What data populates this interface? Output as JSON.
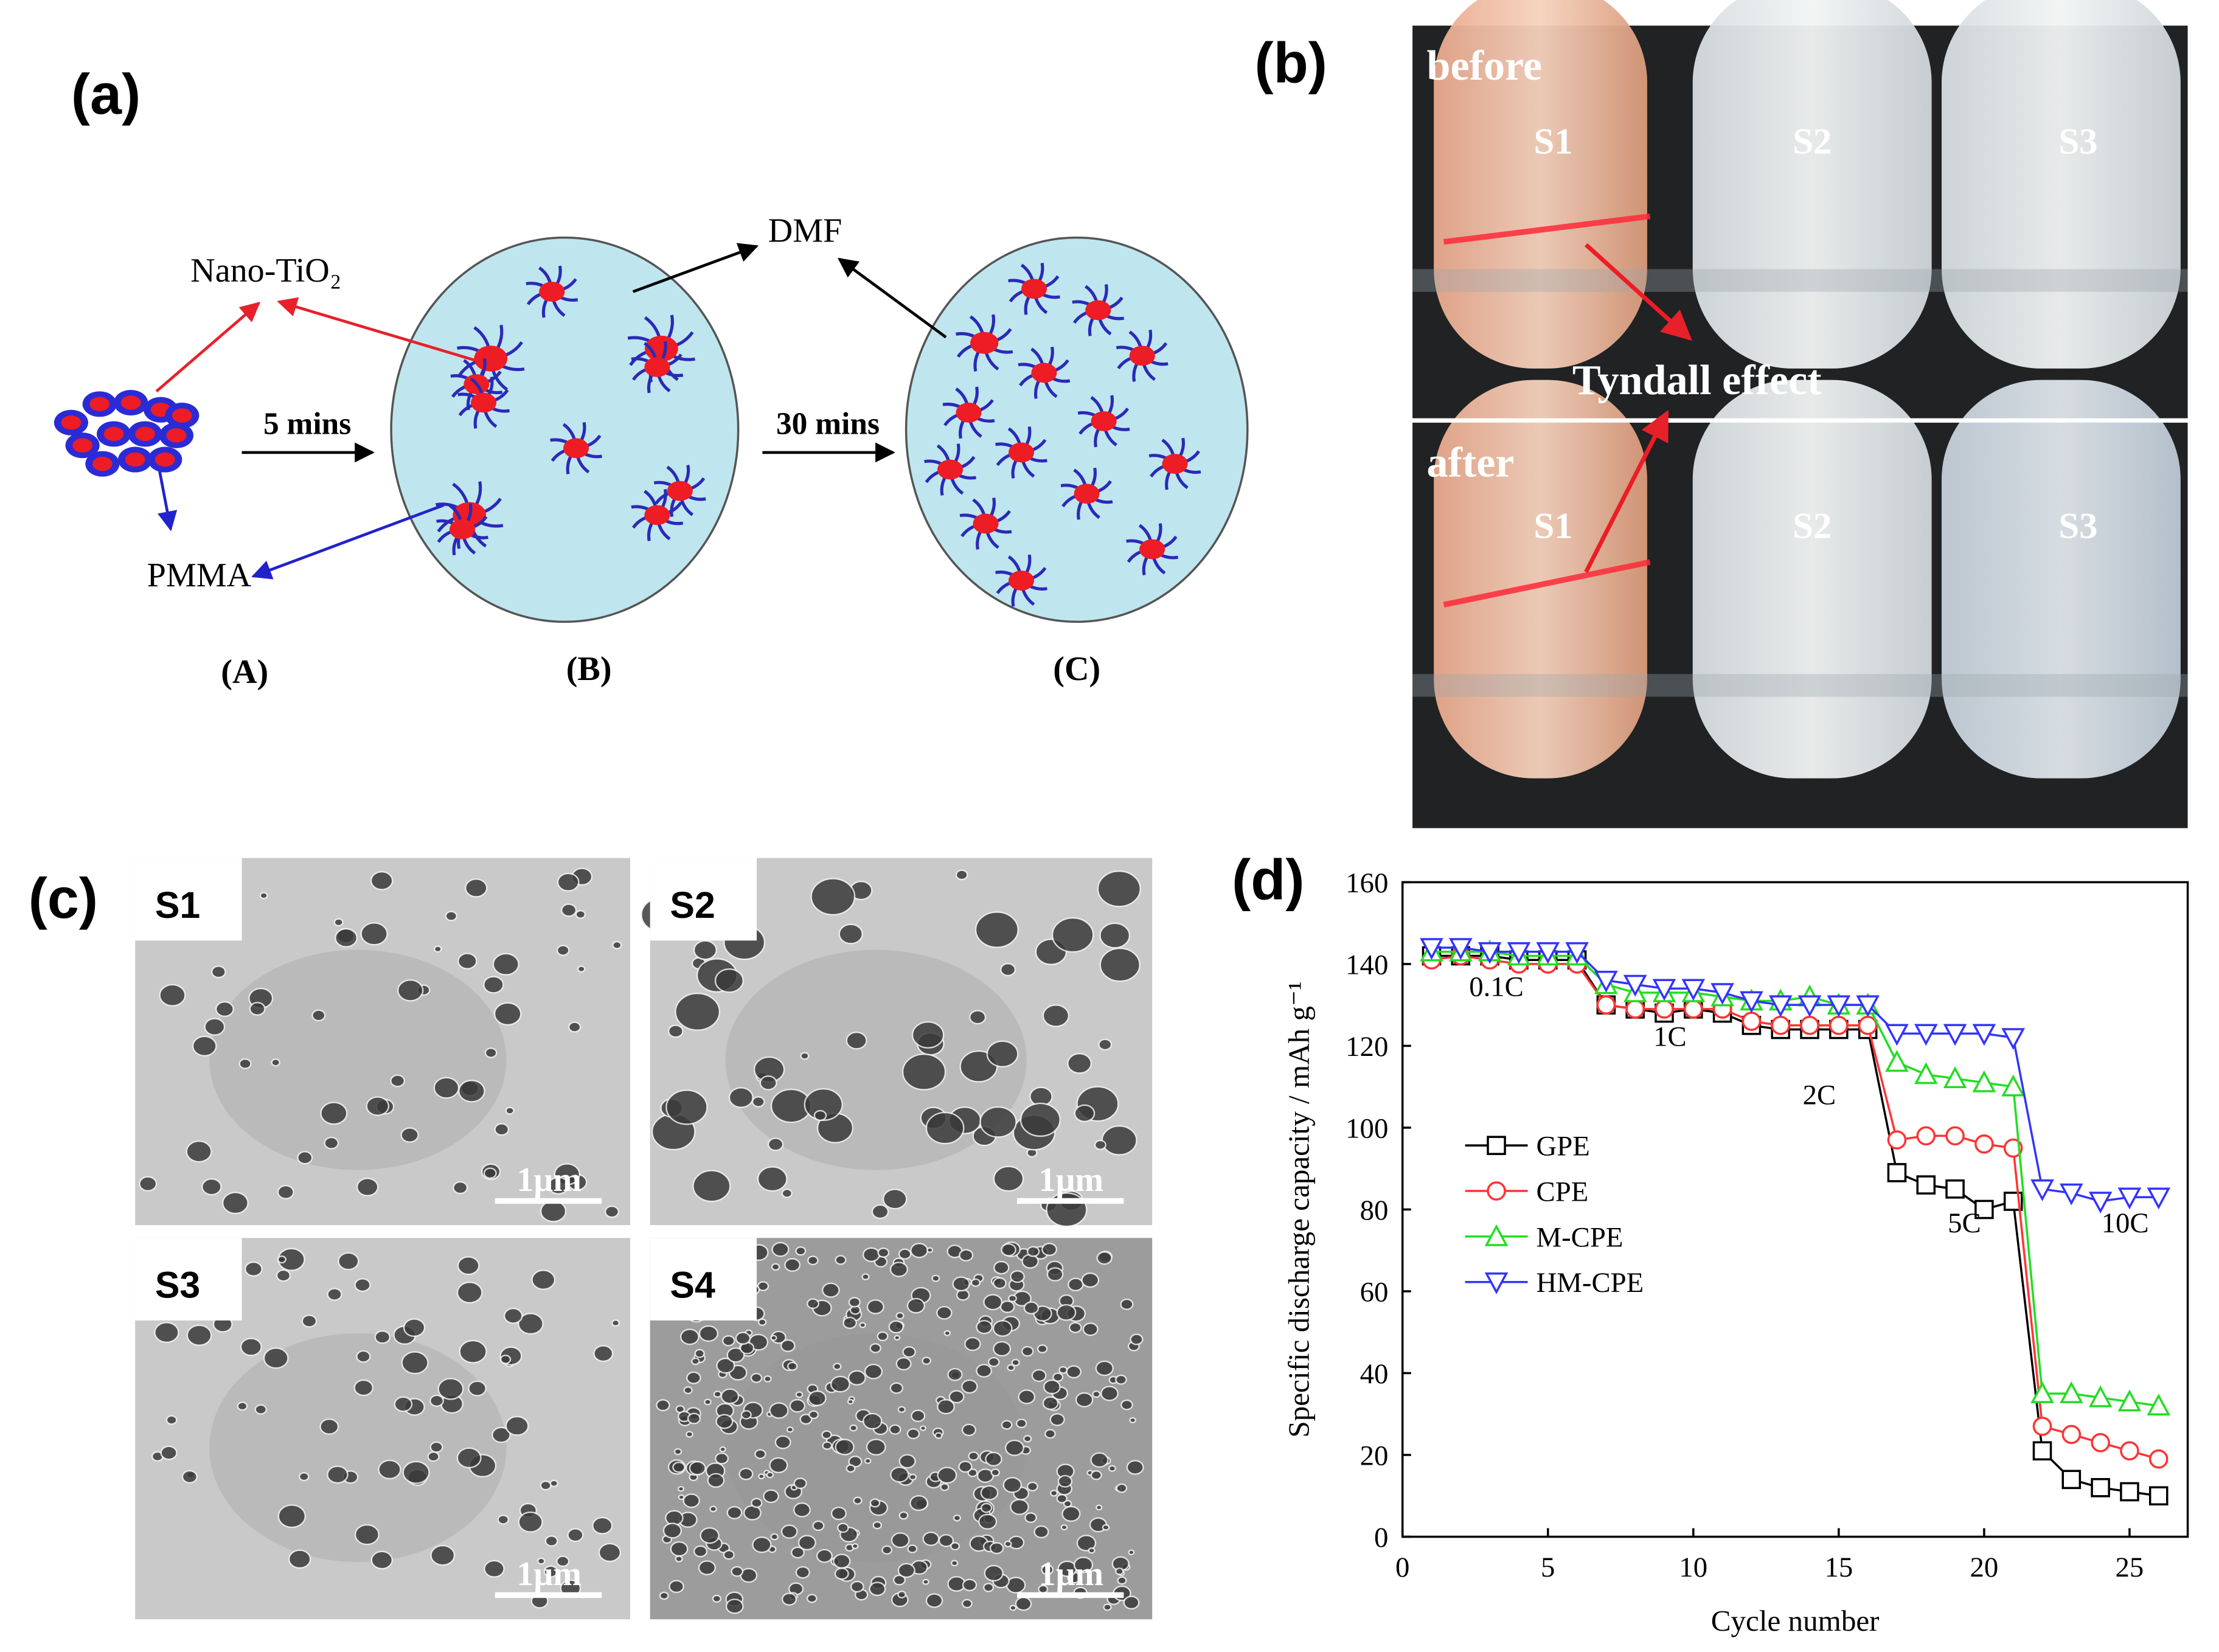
{
  "panel_a": {
    "label": "(a)",
    "nano": "Nano-TiO₂",
    "pmma": "PMMA",
    "dmf": "DMF",
    "step1": "5 mins",
    "step2": "30 mins",
    "stages": [
      "(A)",
      "(B)",
      "(C)"
    ]
  },
  "panel_b": {
    "label": "(b)",
    "before": "before",
    "after": "after",
    "samples": [
      "S1",
      "S2",
      "S3"
    ],
    "annotation": "Tyndall effect"
  },
  "panel_c": {
    "label": "(c)",
    "images": [
      {
        "label": "S1",
        "scale": "1μm"
      },
      {
        "label": "S2",
        "scale": "1μm"
      },
      {
        "label": "S3",
        "scale": "1μm"
      },
      {
        "label": "S4",
        "scale": "1μm"
      }
    ]
  },
  "chart_data": {
    "type": "line",
    "label": "(d)",
    "xlabel": "Cycle number",
    "ylabel": "Specific discharge capacity / mAh g⁻¹",
    "x": [
      1,
      2,
      3,
      4,
      5,
      6,
      7,
      8,
      9,
      10,
      11,
      12,
      13,
      14,
      15,
      16,
      17,
      18,
      19,
      20,
      21,
      22,
      23,
      24,
      25,
      26
    ],
    "series": [
      {
        "name": "GPE",
        "color": "#000000",
        "marker": "square",
        "values": [
          142,
          142,
          142,
          141,
          141,
          141,
          130,
          129,
          128,
          129,
          128,
          125,
          124,
          124,
          124,
          124,
          89,
          86,
          85,
          80,
          82,
          21,
          14,
          12,
          11,
          10
        ]
      },
      {
        "name": "CPE",
        "color": "#ff3333",
        "marker": "circle",
        "values": [
          141,
          142,
          141,
          140,
          140,
          140,
          130,
          129,
          129,
          129,
          129,
          126,
          125,
          125,
          125,
          125,
          97,
          98,
          98,
          96,
          95,
          27,
          25,
          23,
          21,
          19
        ]
      },
      {
        "name": "M-CPE",
        "color": "#22dd22",
        "marker": "triangle-up",
        "values": [
          143,
          143,
          143,
          142,
          142,
          142,
          135,
          133,
          133,
          133,
          132,
          131,
          131,
          132,
          130,
          130,
          116,
          113,
          112,
          111,
          110,
          35,
          35,
          34,
          33,
          32
        ]
      },
      {
        "name": "HM-CPE",
        "color": "#3333ff",
        "marker": "triangle-down",
        "values": [
          144,
          144,
          143,
          143,
          143,
          143,
          136,
          135,
          134,
          134,
          133,
          131,
          130,
          130,
          130,
          130,
          123,
          123,
          123,
          123,
          122,
          85,
          84,
          82,
          83,
          83
        ]
      }
    ],
    "annotations": [
      "0.1C",
      "1C",
      "2C",
      "5C",
      "10C"
    ],
    "xlim": [
      0,
      27
    ],
    "ylim": [
      0,
      160
    ],
    "xticks": [
      0,
      5,
      10,
      15,
      20,
      25
    ],
    "yticks": [
      0,
      20,
      40,
      60,
      80,
      100,
      120,
      140,
      160
    ],
    "legend": "left",
    "grid": false
  }
}
